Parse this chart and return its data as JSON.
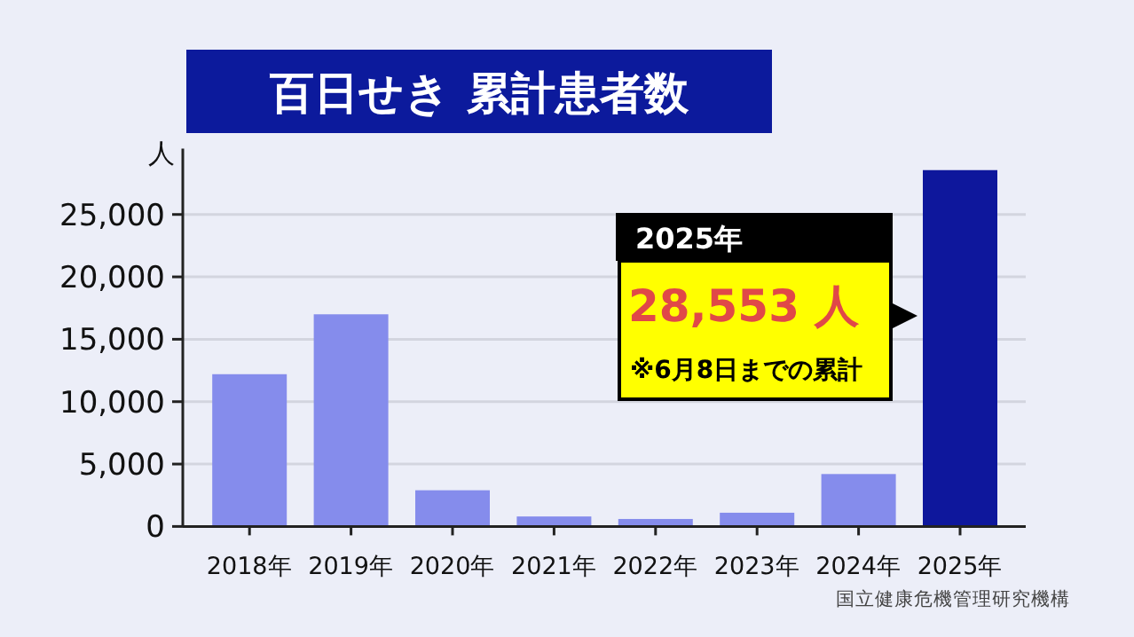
{
  "chart_data": {
    "type": "bar",
    "title": "百日せき 累計患者数",
    "ylabel": "人",
    "categories": [
      "2018年",
      "2019年",
      "2020年",
      "2021年",
      "2022年",
      "2023年",
      "2024年",
      "2025年"
    ],
    "values": [
      12200,
      17000,
      2900,
      800,
      600,
      1100,
      4200,
      28553
    ],
    "colors": [
      "#858cec",
      "#858cec",
      "#858cec",
      "#858cec",
      "#858cec",
      "#858cec",
      "#858cec",
      "#0e179c"
    ],
    "ylim": [
      0,
      30000
    ],
    "yticks": [
      0,
      {
        "value": 5000,
        "label": "5,000"
      },
      {
        "value": 10000,
        "label": "10,000"
      },
      {
        "value": 15000,
        "label": "15,000"
      },
      {
        "value": 20000,
        "label": "20,000"
      },
      {
        "value": 25000,
        "label": "25,000"
      }
    ],
    "grid": "y",
    "annotations": [
      "2025年",
      "28,553 人",
      "※6月8日までの累計",
      "国立健康危機管理研究機構"
    ]
  }
}
